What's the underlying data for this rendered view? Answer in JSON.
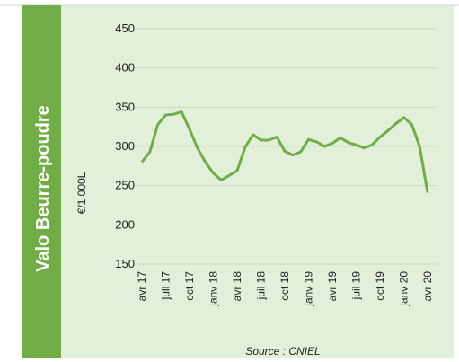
{
  "chart_data": {
    "type": "line",
    "title": "Valo Beurre-poudre",
    "y_label": "€/1 000L",
    "source": "Source : CNIEL",
    "categories": [
      "avr 17",
      null,
      null,
      "juil 17",
      null,
      null,
      "oct 17",
      null,
      null,
      "janv 18",
      null,
      null,
      "avr 18",
      null,
      null,
      "juil 18",
      null,
      null,
      "oct 18",
      null,
      null,
      "janv 19",
      null,
      null,
      "avr 19",
      null,
      null,
      "juil 19",
      null,
      null,
      "oct 19",
      null,
      null,
      "janv 20",
      null,
      null,
      "avr 20"
    ],
    "series": [
      {
        "name": "Valo Beurre-poudre",
        "color": "#70ad47",
        "values": [
          280,
          293,
          328,
          340,
          341,
          344,
          322,
          298,
          280,
          266,
          257,
          263,
          269,
          299,
          315,
          308,
          308,
          312,
          294,
          289,
          293,
          309,
          306,
          300,
          304,
          311,
          305,
          302,
          298,
          302,
          312,
          320,
          329,
          337,
          328,
          300,
          241
        ]
      }
    ],
    "ylim": [
      150,
      450
    ],
    "yticks": [
      150,
      200,
      250,
      300,
      350,
      400,
      450
    ],
    "grid": true
  }
}
